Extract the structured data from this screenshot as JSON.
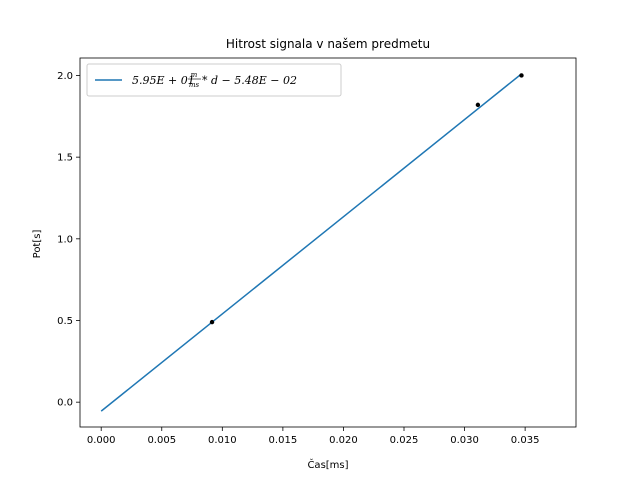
{
  "chart_data": {
    "type": "scatter",
    "title": "Hitrost signala v našem predmetu",
    "xlabel": "Čas[ms]",
    "ylabel": "Pot[s]",
    "xlim": [
      -0.00175,
      0.0392
    ],
    "ylim": [
      -0.152,
      2.107
    ],
    "xticks": [
      0.0,
      0.005,
      0.01,
      0.015,
      0.02,
      0.025,
      0.03,
      0.035
    ],
    "xtick_labels": [
      "0.000",
      "0.005",
      "0.010",
      "0.015",
      "0.020",
      "0.025",
      "0.030",
      "0.035"
    ],
    "yticks": [
      0.0,
      0.5,
      1.0,
      1.5,
      2.0
    ],
    "ytick_labels": [
      "0.0",
      "0.5",
      "1.0",
      "1.5",
      "2.0"
    ],
    "grid": false,
    "legend_position": "upper-left",
    "points": {
      "x": [
        0.00915,
        0.0311,
        0.0347
      ],
      "y": [
        0.49,
        1.82,
        2.0
      ],
      "color": "#000000"
    },
    "series": [
      {
        "name_main": "5.95E + 01",
        "name_frac_num": "m",
        "name_frac_den": "ms",
        "name_rest": " * d − 5.48E − 02",
        "kind": "line",
        "slope": 59.5,
        "intercept": -0.0548,
        "x_range": [
          0.0,
          0.0347
        ],
        "color": "#1f77b4"
      }
    ]
  }
}
